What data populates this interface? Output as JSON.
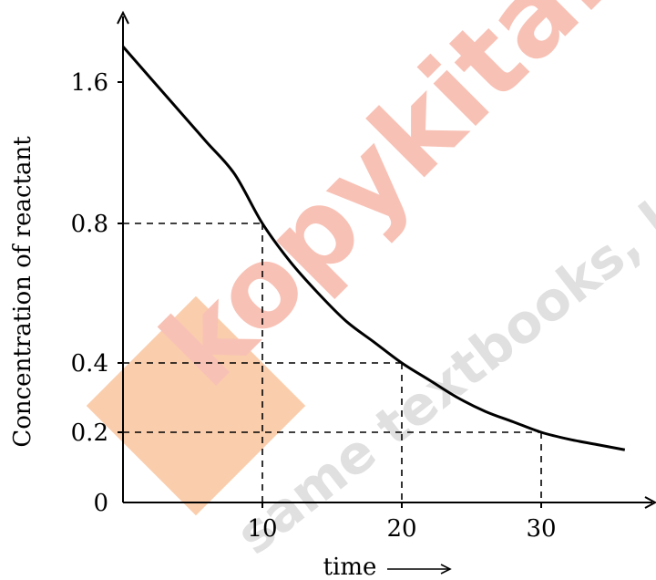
{
  "chart_data": {
    "type": "line",
    "title": "",
    "xlabel": "time",
    "ylabel": "Concentration of reactant",
    "xlim": [
      0,
      37
    ],
    "ylim": [
      0,
      1.95
    ],
    "x_ticks": [
      10,
      20,
      30
    ],
    "x_tick_labels": [
      "10",
      "20",
      "30"
    ],
    "y_ticks": [
      0,
      0.2,
      0.4,
      0.8,
      1.6
    ],
    "y_tick_labels": [
      "0",
      "0.2",
      "0.4",
      "0.8",
      "1.6"
    ],
    "grid": false,
    "series": [
      {
        "name": "",
        "color": "#000000",
        "x": [
          0,
          2,
          4,
          6,
          8,
          10,
          12,
          14,
          16,
          18,
          20,
          22,
          24,
          26,
          28,
          30,
          32,
          34,
          36
        ],
        "y": [
          1.8,
          1.62,
          1.44,
          1.26,
          1.08,
          0.8,
          0.69,
          0.6,
          0.52,
          0.46,
          0.4,
          0.35,
          0.3,
          0.26,
          0.23,
          0.2,
          0.18,
          0.165,
          0.15
        ]
      }
    ],
    "reference_lines": [
      {
        "x": 10,
        "y": 0.8
      },
      {
        "x": 20,
        "y": 0.4
      },
      {
        "x": 30,
        "y": 0.2
      }
    ]
  },
  "watermark": {
    "brand": "kopykitab",
    "tagline": "same textbooks, klick away",
    "brand_color": "#f4a07a",
    "tagline_color": "#c8c8c8"
  }
}
